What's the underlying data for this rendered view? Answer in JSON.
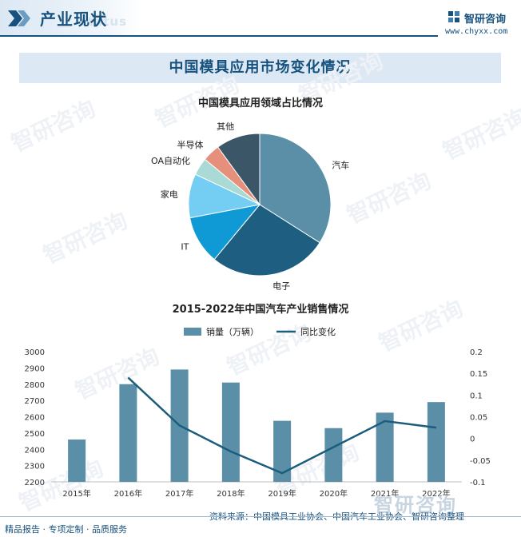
{
  "header": {
    "title": "产业现状",
    "ghost_text": "status"
  },
  "brand": {
    "name": "智研咨询",
    "url": "www.chyxx.com"
  },
  "banner": {
    "title": "中国模具应用市场变化情况"
  },
  "watermark_text": "智研咨询",
  "colors": {
    "brand_blue": "#17517e",
    "banner_bg": "#dce9f5",
    "bar": "#5b8fa8",
    "line": "#1a5d7c"
  },
  "chart_data": [
    {
      "type": "pie",
      "title": "中国模具应用领域占比情况",
      "labels": [
        "汽车",
        "电子",
        "IT",
        "家电",
        "OA自动化",
        "半导体",
        "其他"
      ],
      "values": [
        34,
        27,
        11,
        10,
        4,
        4,
        10
      ],
      "colors": [
        "#5b8fa8",
        "#1e5e80",
        "#0f9ad6",
        "#74cdf3",
        "#a9dad6",
        "#e6907b",
        "#3b5667"
      ]
    },
    {
      "type": "bar+line",
      "title": "2015-2022年中国汽车产业销售情况",
      "categories": [
        "2015年",
        "2016年",
        "2017年",
        "2018年",
        "2019年",
        "2020年",
        "2021年",
        "2022年"
      ],
      "series": [
        {
          "name": "销量（万辆）",
          "type": "bar",
          "axis": "left",
          "values": [
            2460,
            2800,
            2890,
            2810,
            2575,
            2530,
            2625,
            2690
          ]
        },
        {
          "name": "同比变化",
          "type": "line",
          "axis": "right",
          "values": [
            null,
            0.14,
            0.03,
            -0.03,
            -0.08,
            -0.02,
            0.04,
            0.025
          ]
        }
      ],
      "y_left": {
        "min": 2200,
        "max": 3000,
        "ticks": [
          "2200",
          "2300",
          "2400",
          "2500",
          "2600",
          "2700",
          "2800",
          "2900",
          "3000"
        ]
      },
      "y_right": {
        "min": -0.1,
        "max": 0.2,
        "ticks": [
          "-0.1",
          "-0.05",
          "0",
          "0.05",
          "0.1",
          "0.15",
          "0.2"
        ]
      },
      "legend_position": "top-center"
    }
  ],
  "footer": {
    "tagline": "精品报告 · 专项定制 · 品质服务",
    "source": "资料来源：中国模具工业协会、中国汽车工业协会、智研咨询整理",
    "logo_text": "智研咨询"
  }
}
